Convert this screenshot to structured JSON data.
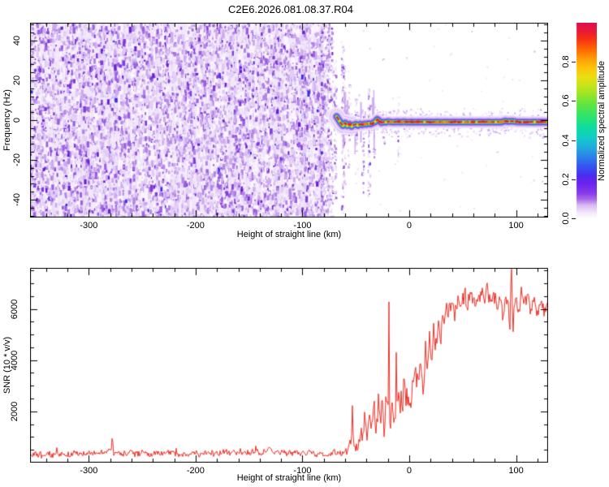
{
  "title": "C2E6.2026.081.08.37.R04",
  "chart_data": [
    {
      "type": "heatmap",
      "name": "spectrogram",
      "xlabel": "Height of straight line (km)",
      "ylabel": "Frequency (Hz)",
      "xlim": [
        -355,
        130
      ],
      "ylim": [
        -49,
        49
      ],
      "x_major_ticks": [
        -300,
        -200,
        -100,
        0,
        100
      ],
      "x_minor_step": 20,
      "y_major_ticks": [
        -40,
        -20,
        0,
        20,
        40
      ],
      "y_minor_step": 4,
      "grid": false,
      "colorbar": {
        "label": "Normalized spectral amplitude",
        "ticks": [
          0.0,
          0.2,
          0.4,
          0.6,
          0.8
        ],
        "range": [
          0,
          1
        ],
        "stops": [
          [
            0.0,
            "#ffffff"
          ],
          [
            0.03,
            "#f4e9fb"
          ],
          [
            0.07,
            "#d9b8f2"
          ],
          [
            0.1,
            "#a86ae8"
          ],
          [
            0.13,
            "#8a3cec"
          ],
          [
            0.18,
            "#6a24ee"
          ],
          [
            0.22,
            "#4b2bef"
          ],
          [
            0.27,
            "#3457f0"
          ],
          [
            0.32,
            "#2c84e9"
          ],
          [
            0.37,
            "#1fb0dc"
          ],
          [
            0.42,
            "#10cfc3"
          ],
          [
            0.47,
            "#0fdd9b"
          ],
          [
            0.52,
            "#2ce46e"
          ],
          [
            0.57,
            "#52e54a"
          ],
          [
            0.62,
            "#86e52e"
          ],
          [
            0.67,
            "#bce51c"
          ],
          [
            0.72,
            "#e8df12"
          ],
          [
            0.77,
            "#fec50a"
          ],
          [
            0.82,
            "#ff9a05"
          ],
          [
            0.87,
            "#ff6203"
          ],
          [
            0.92,
            "#f62f14"
          ],
          [
            0.96,
            "#e81a38"
          ],
          [
            1.0,
            "#e0104d"
          ]
        ]
      },
      "noise_region": {
        "x_range": [
          -355,
          -83
        ],
        "amplitude_range": [
          0,
          0.3
        ],
        "palette": [
          [
            "#f1e7fa",
            0.3
          ],
          [
            "#e2cdf6",
            0.25
          ],
          [
            "#cdaaef",
            0.18
          ],
          [
            "#b285e6",
            0.12
          ],
          [
            "#9a5fe0",
            0.08
          ],
          [
            "#7f3ad8",
            0.05
          ],
          [
            "#6a1fd0",
            0.015
          ],
          [
            "#3a2de0",
            0.005
          ]
        ]
      },
      "signal_track": [
        [
          -68,
          1.8,
          0.7
        ],
        [
          -66,
          0.2,
          0.85
        ],
        [
          -64,
          -1.6,
          0.9
        ],
        [
          -62,
          -2.8,
          0.8
        ],
        [
          -60,
          -1.4,
          0.9
        ],
        [
          -58,
          -2.9,
          0.85
        ],
        [
          -56,
          -2.0,
          0.95
        ],
        [
          -54,
          -3.2,
          0.9
        ],
        [
          -52,
          -2.4,
          0.95
        ],
        [
          -50,
          -2.0,
          0.9
        ],
        [
          -48,
          -2.7,
          1.0
        ],
        [
          -46,
          -2.0,
          0.95
        ],
        [
          -44,
          -2.4,
          1.0
        ],
        [
          -42,
          -1.9,
          0.9
        ],
        [
          -40,
          -2.1,
          0.95
        ],
        [
          -38,
          -1.7,
          0.9
        ],
        [
          -36,
          -1.9,
          0.95
        ],
        [
          -34,
          -1.4,
          0.9
        ],
        [
          -32,
          -0.9,
          0.95
        ],
        [
          -30,
          0.4,
          1.0
        ],
        [
          -28,
          -0.4,
          0.95
        ],
        [
          -26,
          -1.3,
          0.9
        ],
        [
          -24,
          -0.9,
          1.0
        ],
        [
          -22,
          -1.1,
          0.95
        ],
        [
          -20,
          -0.7,
          0.9
        ],
        [
          -17,
          -0.9,
          1.0
        ],
        [
          -14,
          -1.0,
          0.95
        ],
        [
          -11,
          -0.8,
          0.9
        ],
        [
          -8,
          -1.0,
          1.0
        ],
        [
          -5,
          -0.8,
          0.95
        ],
        [
          -2,
          -1.0,
          0.9
        ],
        [
          2,
          -0.9,
          1.0
        ],
        [
          6,
          -1.0,
          0.95
        ],
        [
          10,
          -0.9,
          1.0
        ],
        [
          14,
          -1.0,
          0.9
        ],
        [
          18,
          -0.9,
          0.95
        ],
        [
          22,
          -1.0,
          1.0
        ],
        [
          26,
          -0.9,
          0.95
        ],
        [
          30,
          -1.0,
          0.9
        ],
        [
          34,
          -0.9,
          1.0
        ],
        [
          38,
          -1.0,
          0.95
        ],
        [
          42,
          -0.9,
          1.0
        ],
        [
          46,
          -1.0,
          0.9
        ],
        [
          50,
          -0.9,
          0.95
        ],
        [
          54,
          -1.0,
          1.0
        ],
        [
          58,
          -0.9,
          0.95
        ],
        [
          62,
          -1.0,
          0.9
        ],
        [
          66,
          -0.9,
          1.0
        ],
        [
          70,
          -1.0,
          0.95
        ],
        [
          74,
          -0.9,
          0.9
        ],
        [
          78,
          -1.0,
          1.0
        ],
        [
          82,
          -0.9,
          0.95
        ],
        [
          86,
          -1.0,
          0.9
        ],
        [
          90,
          -0.4,
          1.0
        ],
        [
          93,
          -0.7,
          0.95
        ],
        [
          96,
          -0.5,
          0.9
        ],
        [
          100,
          -0.8,
          1.0
        ],
        [
          104,
          -0.9,
          0.95
        ],
        [
          108,
          -0.9,
          1.0
        ],
        [
          112,
          -1.0,
          0.9
        ],
        [
          116,
          -0.9,
          0.95
        ],
        [
          120,
          -1.0,
          1.0
        ],
        [
          124,
          -0.9,
          0.95
        ],
        [
          128,
          -1.0,
          0.9
        ],
        [
          130,
          -1.0,
          0.9
        ]
      ],
      "streaks": [
        [
          -76,
          -49,
          49,
          150
        ],
        [
          -73,
          -49,
          49,
          100
        ],
        [
          -70,
          -40,
          35,
          60
        ],
        [
          -63,
          -46,
          40,
          80
        ],
        [
          -61,
          -32,
          28,
          45
        ],
        [
          -57,
          -24,
          18,
          25
        ],
        [
          -50,
          -28,
          14,
          22
        ],
        [
          -44,
          -36,
          10,
          26
        ],
        [
          -38,
          -38,
          18,
          40
        ],
        [
          -33,
          -20,
          10,
          15
        ],
        [
          -25,
          -14,
          8,
          10
        ],
        [
          -11,
          -22,
          12,
          18
        ]
      ]
    },
    {
      "type": "line",
      "name": "snr",
      "xlabel": "Height of straight line (km)",
      "ylabel": "SNR (10 * v/v)",
      "xlim": [
        -355,
        130
      ],
      "ylim": [
        0,
        7600
      ],
      "x_major_ticks": [
        -300,
        -200,
        -100,
        0,
        100
      ],
      "x_minor_step": 20,
      "y_major_ticks": [
        2000,
        4000,
        6000
      ],
      "y_minor_step": 500,
      "grid": false,
      "line_color": "#ee3026",
      "envelope": [
        [
          -355,
          300
        ],
        [
          -348,
          280
        ],
        [
          -340,
          330
        ],
        [
          -334,
          280
        ],
        [
          -327,
          350
        ],
        [
          -320,
          300
        ],
        [
          -313,
          380
        ],
        [
          -305,
          300
        ],
        [
          -300,
          400
        ],
        [
          -295,
          320
        ],
        [
          -288,
          380
        ],
        [
          -282,
          450
        ],
        [
          -279,
          500
        ],
        [
          -278,
          1100
        ],
        [
          -277,
          420
        ],
        [
          -268,
          350
        ],
        [
          -262,
          420
        ],
        [
          -256,
          330
        ],
        [
          -250,
          400
        ],
        [
          -244,
          330
        ],
        [
          -238,
          430
        ],
        [
          -232,
          350
        ],
        [
          -226,
          420
        ],
        [
          -220,
          340
        ],
        [
          -214,
          400
        ],
        [
          -208,
          330
        ],
        [
          -202,
          420
        ],
        [
          -196,
          350
        ],
        [
          -190,
          430
        ],
        [
          -184,
          340
        ],
        [
          -178,
          400
        ],
        [
          -172,
          470
        ],
        [
          -166,
          380
        ],
        [
          -160,
          430
        ],
        [
          -154,
          350
        ],
        [
          -148,
          410
        ],
        [
          -142,
          340
        ],
        [
          -136,
          430
        ],
        [
          -130,
          470
        ],
        [
          -124,
          380
        ],
        [
          -118,
          420
        ],
        [
          -112,
          350
        ],
        [
          -106,
          420
        ],
        [
          -100,
          360
        ],
        [
          -94,
          410
        ],
        [
          -88,
          340
        ],
        [
          -82,
          390
        ],
        [
          -76,
          330
        ],
        [
          -70,
          390
        ],
        [
          -64,
          340
        ],
        [
          -58,
          420
        ],
        [
          -55,
          800
        ],
        [
          -53.7,
          900
        ],
        [
          -53,
          2700
        ],
        [
          -52.3,
          700
        ],
        [
          -51,
          600
        ],
        [
          -49,
          420
        ],
        [
          -47,
          750
        ],
        [
          -45,
          1400
        ],
        [
          -43,
          800
        ],
        [
          -41,
          1600
        ],
        [
          -39,
          950
        ],
        [
          -37,
          1800
        ],
        [
          -35,
          1150
        ],
        [
          -33,
          2050
        ],
        [
          -31,
          1000
        ],
        [
          -29,
          2400
        ],
        [
          -27,
          1350
        ],
        [
          -25,
          2000
        ],
        [
          -23,
          1200
        ],
        [
          -21,
          2600
        ],
        [
          -19.5,
          2400
        ],
        [
          -19,
          6000
        ],
        [
          -18.5,
          2000
        ],
        [
          -17,
          1700
        ],
        [
          -15,
          2400
        ],
        [
          -13,
          1600
        ],
        [
          -12.5,
          2100
        ],
        [
          -12,
          5800
        ],
        [
          -11.5,
          2000
        ],
        [
          -9,
          2800
        ],
        [
          -7,
          1950
        ],
        [
          -5,
          3200
        ],
        [
          -3,
          2350
        ],
        [
          -1,
          2800
        ],
        [
          1,
          2250
        ],
        [
          3,
          3100
        ],
        [
          5,
          3600
        ],
        [
          7,
          2650
        ],
        [
          9,
          3400
        ],
        [
          11,
          4200
        ],
        [
          13,
          3050
        ],
        [
          15,
          4400
        ],
        [
          17,
          3600
        ],
        [
          19,
          4800
        ],
        [
          21,
          4150
        ],
        [
          23,
          5000
        ],
        [
          25,
          4400
        ],
        [
          27,
          5400
        ],
        [
          29,
          4800
        ],
        [
          31,
          5600
        ],
        [
          33,
          5200
        ],
        [
          35,
          6000
        ],
        [
          37,
          5550
        ],
        [
          40,
          6200
        ],
        [
          43,
          5750
        ],
        [
          46,
          6400
        ],
        [
          49,
          6000
        ],
        [
          52,
          6600
        ],
        [
          55,
          6150
        ],
        [
          58,
          6800
        ],
        [
          61,
          6350
        ],
        [
          64,
          6000
        ],
        [
          67,
          6900
        ],
        [
          70,
          6300
        ],
        [
          73,
          6700
        ],
        [
          76,
          6150
        ],
        [
          79,
          6600
        ],
        [
          82,
          6000
        ],
        [
          85,
          6500
        ],
        [
          88,
          5750
        ],
        [
          91,
          6400
        ],
        [
          93,
          6200
        ],
        [
          94,
          4500
        ],
        [
          95,
          6800
        ],
        [
          96,
          7400
        ],
        [
          97,
          4400
        ],
        [
          98,
          5800
        ],
        [
          100,
          6800
        ],
        [
          102,
          5600
        ],
        [
          105,
          6600
        ],
        [
          108,
          6000
        ],
        [
          111,
          6500
        ],
        [
          114,
          5850
        ],
        [
          117,
          6400
        ],
        [
          120,
          5800
        ],
        [
          123,
          6300
        ],
        [
          126,
          6000
        ],
        [
          129,
          6200
        ],
        [
          130,
          6100
        ]
      ],
      "noise_amp": [
        [
          -355,
          160
        ],
        [
          -150,
          160
        ],
        [
          -80,
          150
        ],
        [
          -60,
          200
        ],
        [
          -52,
          350
        ],
        [
          -44,
          500
        ],
        [
          -36,
          650
        ],
        [
          -28,
          800
        ],
        [
          -20,
          850
        ],
        [
          -12,
          800
        ],
        [
          -4,
          700
        ],
        [
          4,
          750
        ],
        [
          12,
          800
        ],
        [
          20,
          750
        ],
        [
          28,
          650
        ],
        [
          36,
          600
        ],
        [
          44,
          520
        ],
        [
          52,
          480
        ],
        [
          60,
          450
        ],
        [
          70,
          430
        ],
        [
          80,
          450
        ],
        [
          90,
          520
        ],
        [
          97,
          600
        ],
        [
          104,
          480
        ],
        [
          112,
          440
        ],
        [
          120,
          430
        ],
        [
          130,
          420
        ]
      ]
    }
  ]
}
